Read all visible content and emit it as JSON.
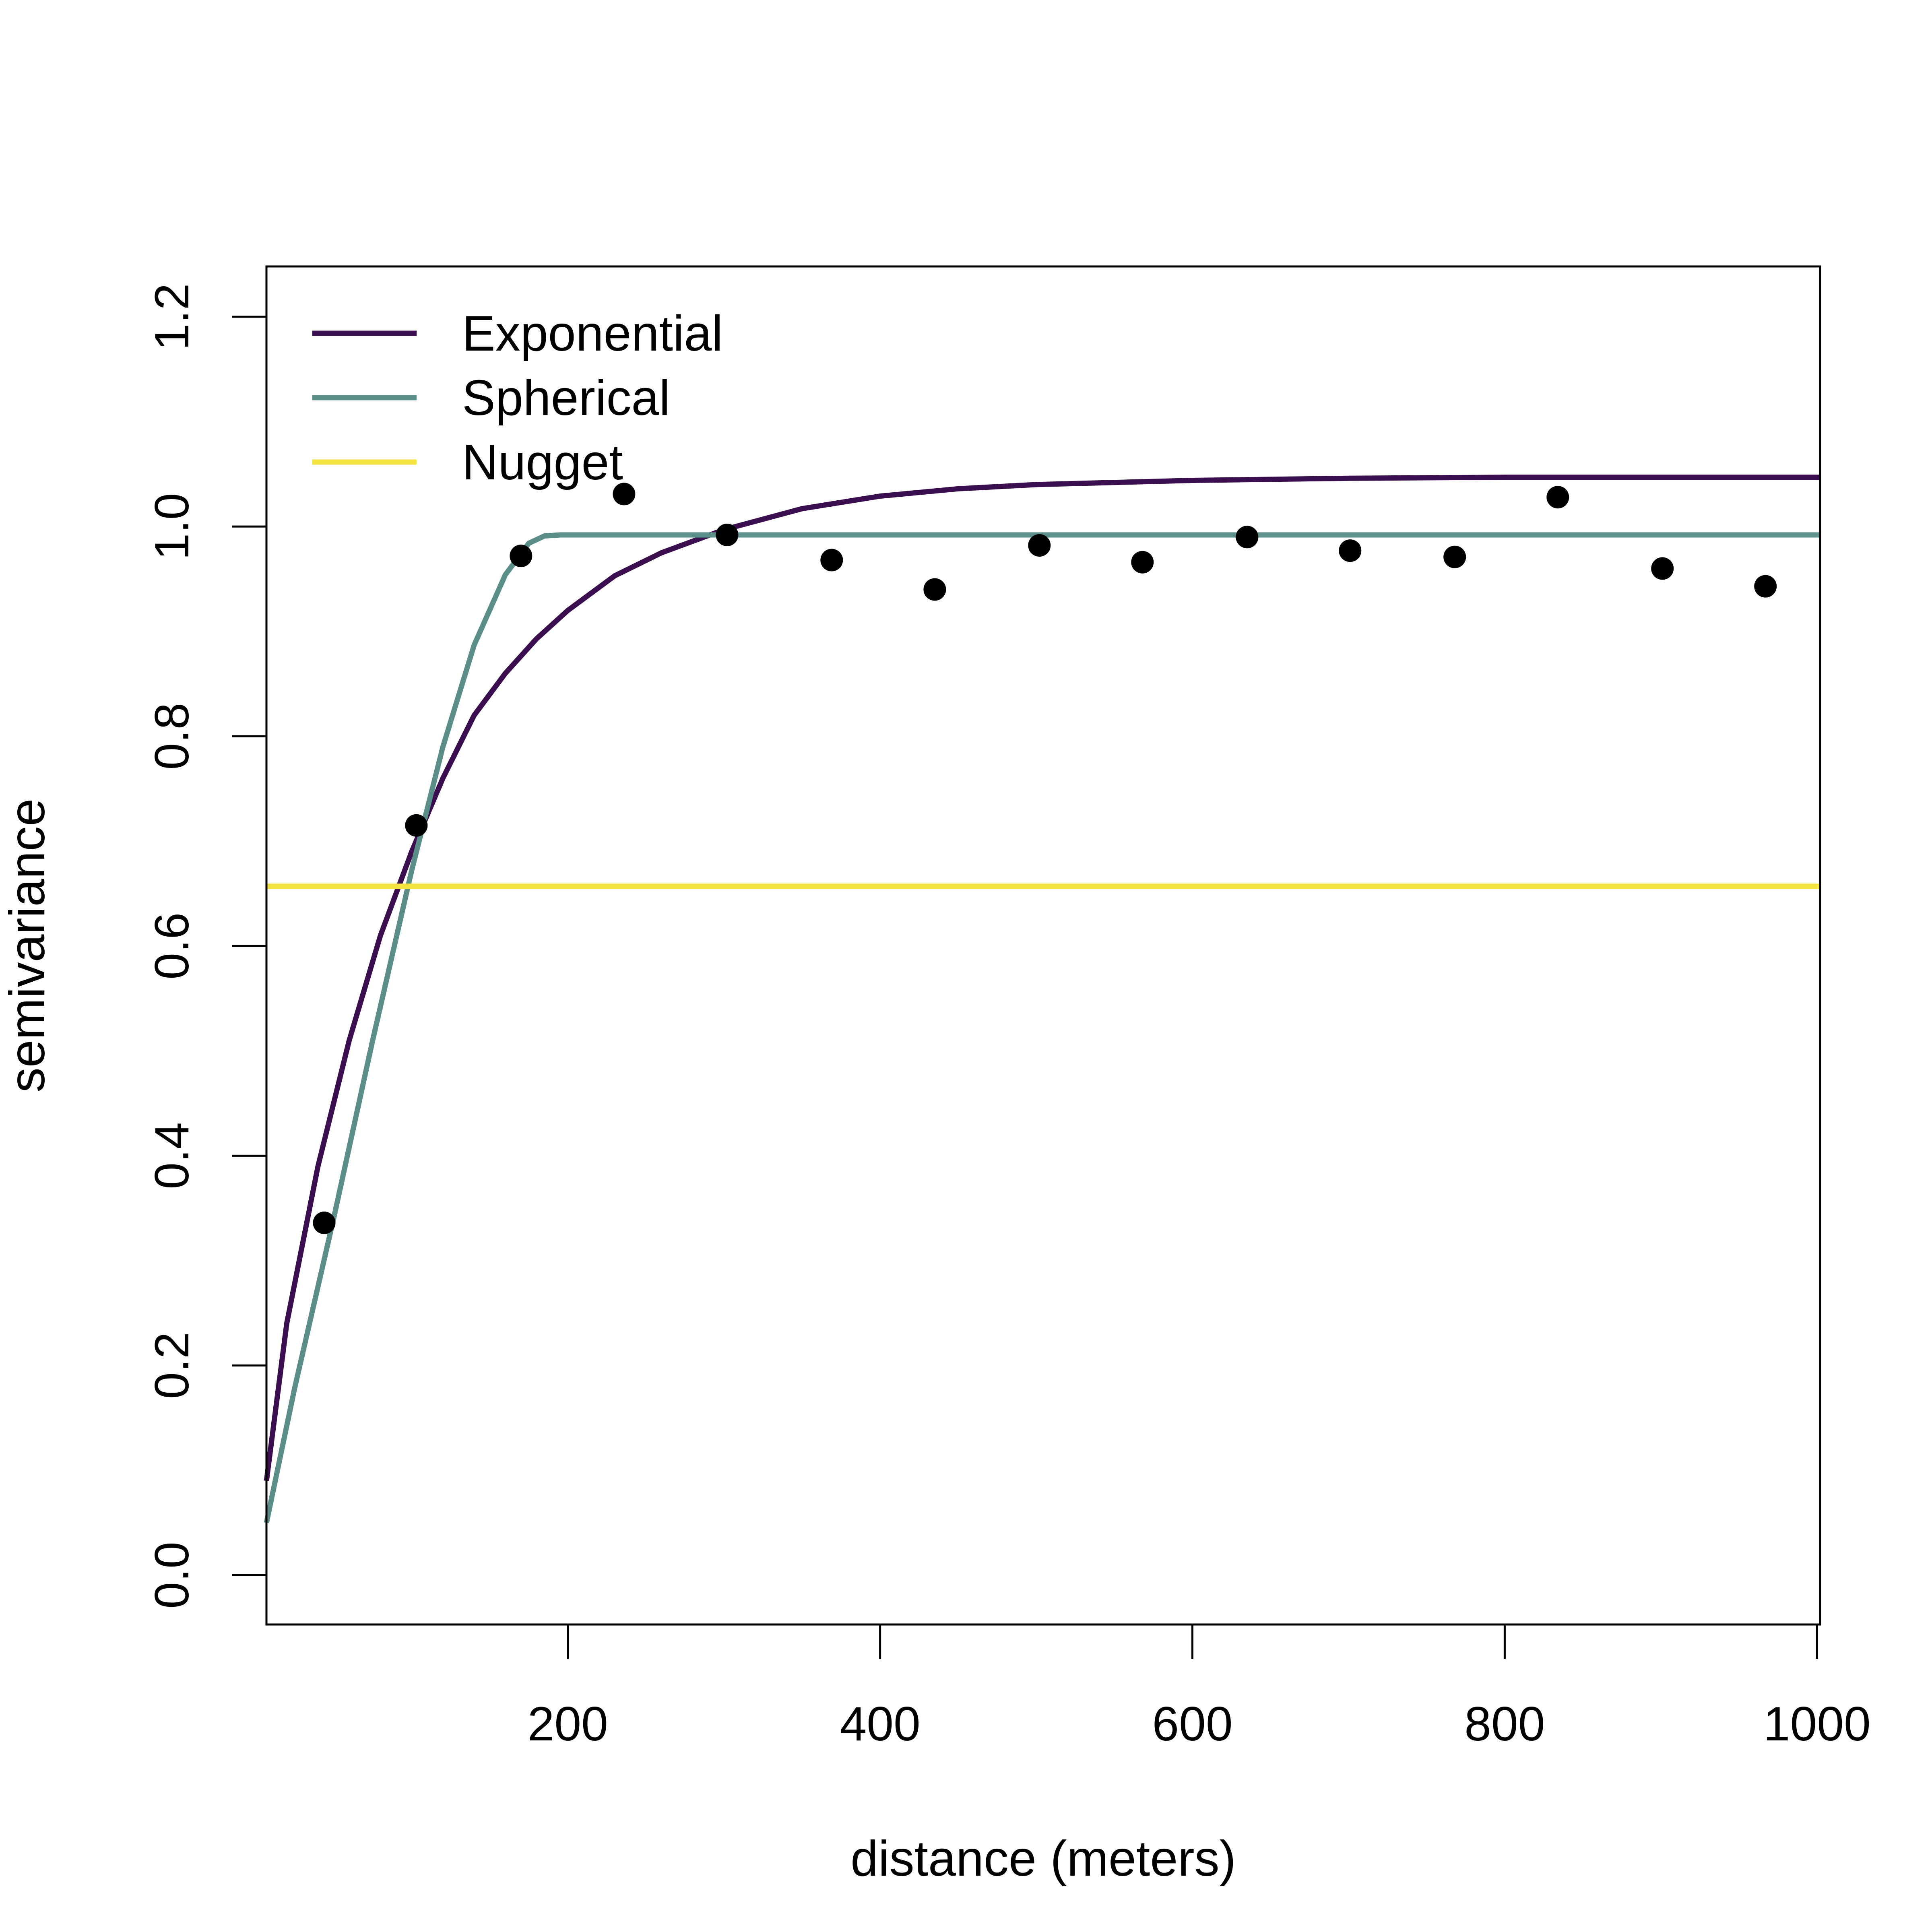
{
  "chart_data": {
    "type": "scatter",
    "title": "",
    "xlabel": "distance (meters)",
    "ylabel": "semivariance",
    "xlim": [
      7,
      1002
    ],
    "ylim": [
      -0.047,
      1.248
    ],
    "x_ticks": [
      200,
      400,
      600,
      800,
      1000
    ],
    "x_tick_labels": [
      "200",
      "400",
      "600",
      "800",
      "1000"
    ],
    "y_ticks": [
      0.0,
      0.2,
      0.4,
      0.6,
      0.8,
      1.0,
      1.2
    ],
    "y_tick_labels": [
      "0.0",
      "0.2",
      "0.4",
      "0.6",
      "0.8",
      "1.0",
      "1.2"
    ],
    "grid": false,
    "legend_position": "top-left",
    "points": {
      "x": [
        44,
        103,
        170,
        236,
        302,
        369,
        435,
        502,
        568,
        635,
        701,
        768,
        834,
        901,
        967
      ],
      "y": [
        0.336,
        0.715,
        0.972,
        1.031,
        0.992,
        0.968,
        0.94,
        0.982,
        0.966,
        0.99,
        0.977,
        0.971,
        1.028,
        0.96,
        0.943
      ],
      "color": "#000000"
    },
    "series": [
      {
        "name": "Exponential",
        "color": "#3b0f4f",
        "x": [
          7,
          20,
          40,
          60,
          80,
          100,
          120,
          140,
          160,
          180,
          200,
          230,
          260,
          300,
          350,
          400,
          450,
          500,
          600,
          700,
          800,
          900,
          1002
        ],
        "y": [
          0.09,
          0.24,
          0.39,
          0.51,
          0.61,
          0.69,
          0.76,
          0.82,
          0.86,
          0.893,
          0.92,
          0.953,
          0.975,
          0.997,
          1.017,
          1.029,
          1.036,
          1.04,
          1.044,
          1.046,
          1.047,
          1.047,
          1.047
        ]
      },
      {
        "name": "Spherical",
        "color": "#5b8e88",
        "x": [
          7,
          25,
          50,
          75,
          100,
          120,
          140,
          160,
          175,
          185,
          195,
          1002
        ],
        "y": [
          0.05,
          0.178,
          0.34,
          0.51,
          0.672,
          0.79,
          0.887,
          0.954,
          0.984,
          0.991,
          0.992,
          0.992
        ]
      },
      {
        "name": "Nugget",
        "color": "#f5e33f",
        "x": [
          7,
          1002
        ],
        "y": [
          0.657,
          0.657
        ]
      }
    ]
  }
}
